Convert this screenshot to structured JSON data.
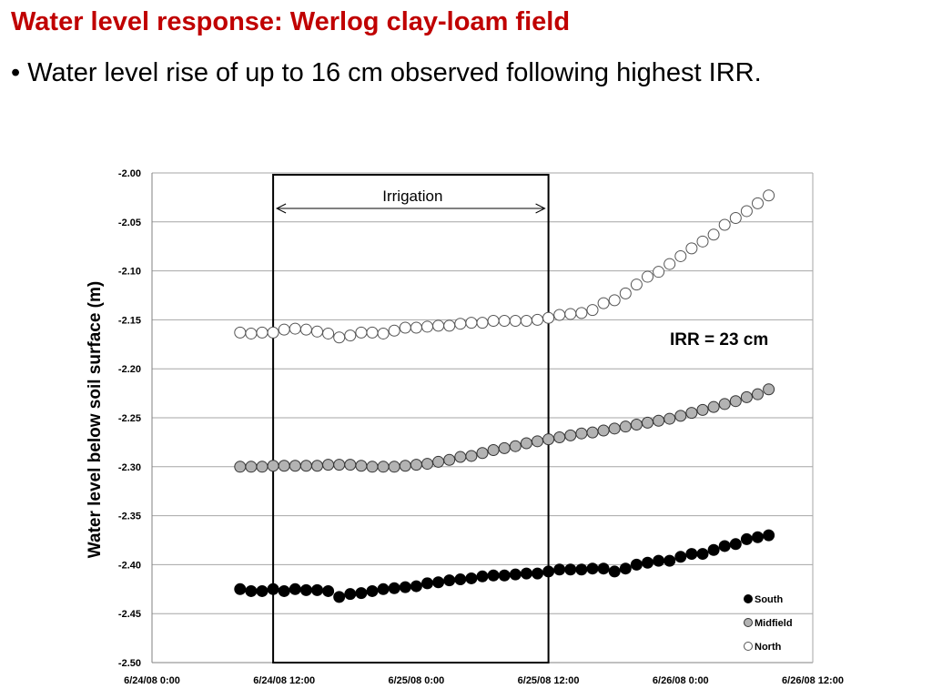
{
  "slide": {
    "title": "Water level response: Werlog clay-loam field",
    "bullet": "• Water level rise of up to 16 cm observed following highest IRR."
  },
  "colors": {
    "title": "#c00000",
    "south": "#000000",
    "midfield": "#b3b3b3",
    "north": "#ffffff",
    "grid": "#a6a6a6"
  },
  "chart_data": {
    "type": "scatter",
    "title": "",
    "xlabel": "",
    "ylabel": "Water level below soil surface (m)",
    "x_tick_labels": [
      "6/24/08 0:00",
      "6/24/08 12:00",
      "6/25/08 0:00",
      "6/25/08 12:00",
      "6/26/08 0:00",
      "6/26/08 12:00"
    ],
    "xlim": [
      "6/24/08 0:00",
      "6/26/08 12:00"
    ],
    "x_ticks_hours": [
      0,
      12,
      24,
      36,
      48,
      60
    ],
    "y_tick_labels": [
      "-2.00",
      "-2.05",
      "-2.10",
      "-2.15",
      "-2.20",
      "-2.25",
      "-2.30",
      "-2.35",
      "-2.40",
      "-2.45",
      "-2.50"
    ],
    "ylim": [
      -2.5,
      -2.0
    ],
    "grid": "horizontal",
    "legend_position": "bottom-right",
    "x_start_hour": 8,
    "x_step_hours": 1,
    "series": [
      {
        "name": "South",
        "marker": "filled-black-circle",
        "y": [
          -2.425,
          -2.427,
          -2.427,
          -2.425,
          -2.427,
          -2.425,
          -2.426,
          -2.426,
          -2.427,
          -2.433,
          -2.43,
          -2.429,
          -2.427,
          -2.425,
          -2.424,
          -2.423,
          -2.422,
          -2.419,
          -2.418,
          -2.416,
          -2.415,
          -2.414,
          -2.412,
          -2.411,
          -2.411,
          -2.41,
          -2.409,
          -2.409,
          -2.407,
          -2.405,
          -2.405,
          -2.405,
          -2.404,
          -2.404,
          -2.407,
          -2.404,
          -2.4,
          -2.398,
          -2.396,
          -2.396,
          -2.392,
          -2.389,
          -2.389,
          -2.385,
          -2.381,
          -2.379,
          -2.374,
          -2.372,
          -2.37
        ]
      },
      {
        "name": "Midfield",
        "marker": "filled-gray-circle",
        "y": [
          -2.3,
          -2.3,
          -2.3,
          -2.299,
          -2.299,
          -2.299,
          -2.299,
          -2.299,
          -2.298,
          -2.298,
          -2.298,
          -2.299,
          -2.3,
          -2.3,
          -2.3,
          -2.299,
          -2.298,
          -2.297,
          -2.295,
          -2.293,
          -2.29,
          -2.289,
          -2.286,
          -2.283,
          -2.281,
          -2.279,
          -2.276,
          -2.274,
          -2.272,
          -2.27,
          -2.268,
          -2.266,
          -2.265,
          -2.263,
          -2.261,
          -2.259,
          -2.257,
          -2.255,
          -2.253,
          -2.251,
          -2.248,
          -2.245,
          -2.242,
          -2.239,
          -2.236,
          -2.233,
          -2.229,
          -2.226,
          -2.221
        ]
      },
      {
        "name": "North",
        "marker": "open-circle",
        "y": [
          -2.163,
          -2.164,
          -2.163,
          -2.163,
          -2.16,
          -2.159,
          -2.16,
          -2.162,
          -2.164,
          -2.168,
          -2.166,
          -2.163,
          -2.163,
          -2.164,
          -2.161,
          -2.158,
          -2.158,
          -2.157,
          -2.156,
          -2.156,
          -2.154,
          -2.153,
          -2.153,
          -2.151,
          -2.151,
          -2.151,
          -2.151,
          -2.15,
          -2.148,
          -2.145,
          -2.144,
          -2.143,
          -2.14,
          -2.133,
          -2.13,
          -2.123,
          -2.114,
          -2.106,
          -2.101,
          -2.093,
          -2.085,
          -2.077,
          -2.07,
          -2.063,
          -2.053,
          -2.046,
          -2.039,
          -2.031,
          -2.023
        ]
      }
    ],
    "annotations": {
      "irrigation_box_hours": [
        11,
        36
      ],
      "irrigation_label": "Irrigation",
      "irr_text": "IRR = 23 cm"
    }
  }
}
